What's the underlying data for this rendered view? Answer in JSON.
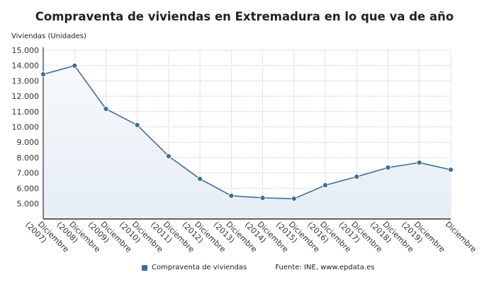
{
  "chart_data": {
    "type": "area",
    "title": "Compraventa de viviendas en Extremadura en lo que va de año",
    "ylabel": "Viviendas (Unidades)",
    "xlabel": "",
    "categories": [
      "Diciembre (2007)",
      "Diciembre (2008)",
      "Diciembre (2009)",
      "Diciembre (2010)",
      "Diciembre (2011)",
      "Diciembre (2012)",
      "Diciembre (2013)",
      "Diciembre (2014)",
      "Diciembre (2015)",
      "Diciembre (2016)",
      "Diciembre (2017)",
      "Diciembre (2018)",
      "Diciembre (2019)",
      "Diciembre"
    ],
    "series": [
      {
        "name": "Compraventa de viviendas",
        "values": [
          13430,
          13990,
          11170,
          10120,
          8090,
          6610,
          5510,
          5370,
          5320,
          6200,
          6750,
          7350,
          7670,
          7210
        ]
      }
    ],
    "yticks": [
      5000,
      6000,
      7000,
      8000,
      9000,
      10000,
      11000,
      12000,
      13000,
      14000,
      15000
    ],
    "ytick_labels": [
      "5.000",
      "6.000",
      "7.000",
      "8.000",
      "9.000",
      "10.000",
      "11.000",
      "12.000",
      "13.000",
      "14.000",
      "15.000"
    ],
    "ylim": [
      4000,
      15000
    ],
    "grid": true,
    "legend": "bottom",
    "color": "#3f6f98"
  },
  "source": "Fuente: INE, www.epdata.es"
}
